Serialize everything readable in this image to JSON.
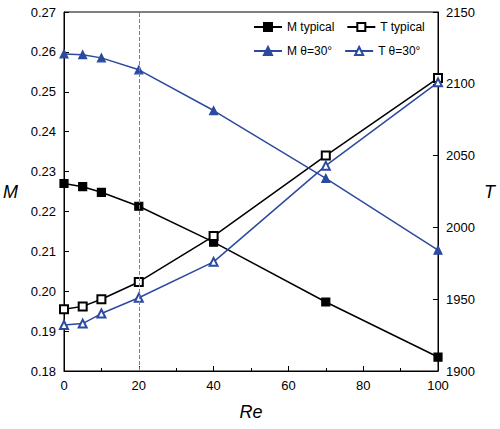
{
  "chart_data": {
    "type": "line",
    "x_label": "Re",
    "y_label": "M",
    "y2_label": "T",
    "x": [
      0,
      5,
      10,
      20,
      40,
      70,
      100
    ],
    "series": [
      {
        "name": "M typical",
        "color": "#000000",
        "marker": "square",
        "values": [
          0.227,
          0.2262,
          0.2248,
          0.2213,
          0.2123,
          0.1973,
          0.1835
        ]
      },
      {
        "name": "T typical",
        "color": "#000000",
        "marker": "square_open",
        "axis": "y2",
        "values": [
          1943,
          1945,
          1950,
          1962,
          1994,
          2050,
          2104
        ]
      },
      {
        "name": "M θ=30°",
        "color": "#2b4aa0",
        "marker": "triangle",
        "values": [
          0.2595,
          0.2593,
          0.2585,
          0.2555,
          0.2453,
          0.2283,
          0.2103
        ]
      },
      {
        "name": "T θ=30°",
        "color": "#2b4aa0",
        "marker": "triangle_open",
        "axis": "y2",
        "values": [
          1932,
          1933,
          1940,
          1951,
          1976,
          2043,
          2101
        ]
      }
    ],
    "xlim": [
      0,
      100
    ],
    "xticks": [
      0,
      20,
      40,
      60,
      80,
      100
    ],
    "ylim": [
      0.18,
      0.27
    ],
    "yticks": [
      0.18,
      0.19,
      {
        "value": 0.2,
        "label": "0.20"
      },
      0.21,
      0.22,
      0.23,
      0.24,
      0.25,
      0.26,
      0.27
    ],
    "y2lim": [
      1900,
      2150
    ],
    "y2ticks": [
      1900,
      1950,
      2000,
      2050,
      2100,
      2150
    ],
    "vlines": [
      20
    ],
    "legend": "upper right",
    "grid": false
  }
}
